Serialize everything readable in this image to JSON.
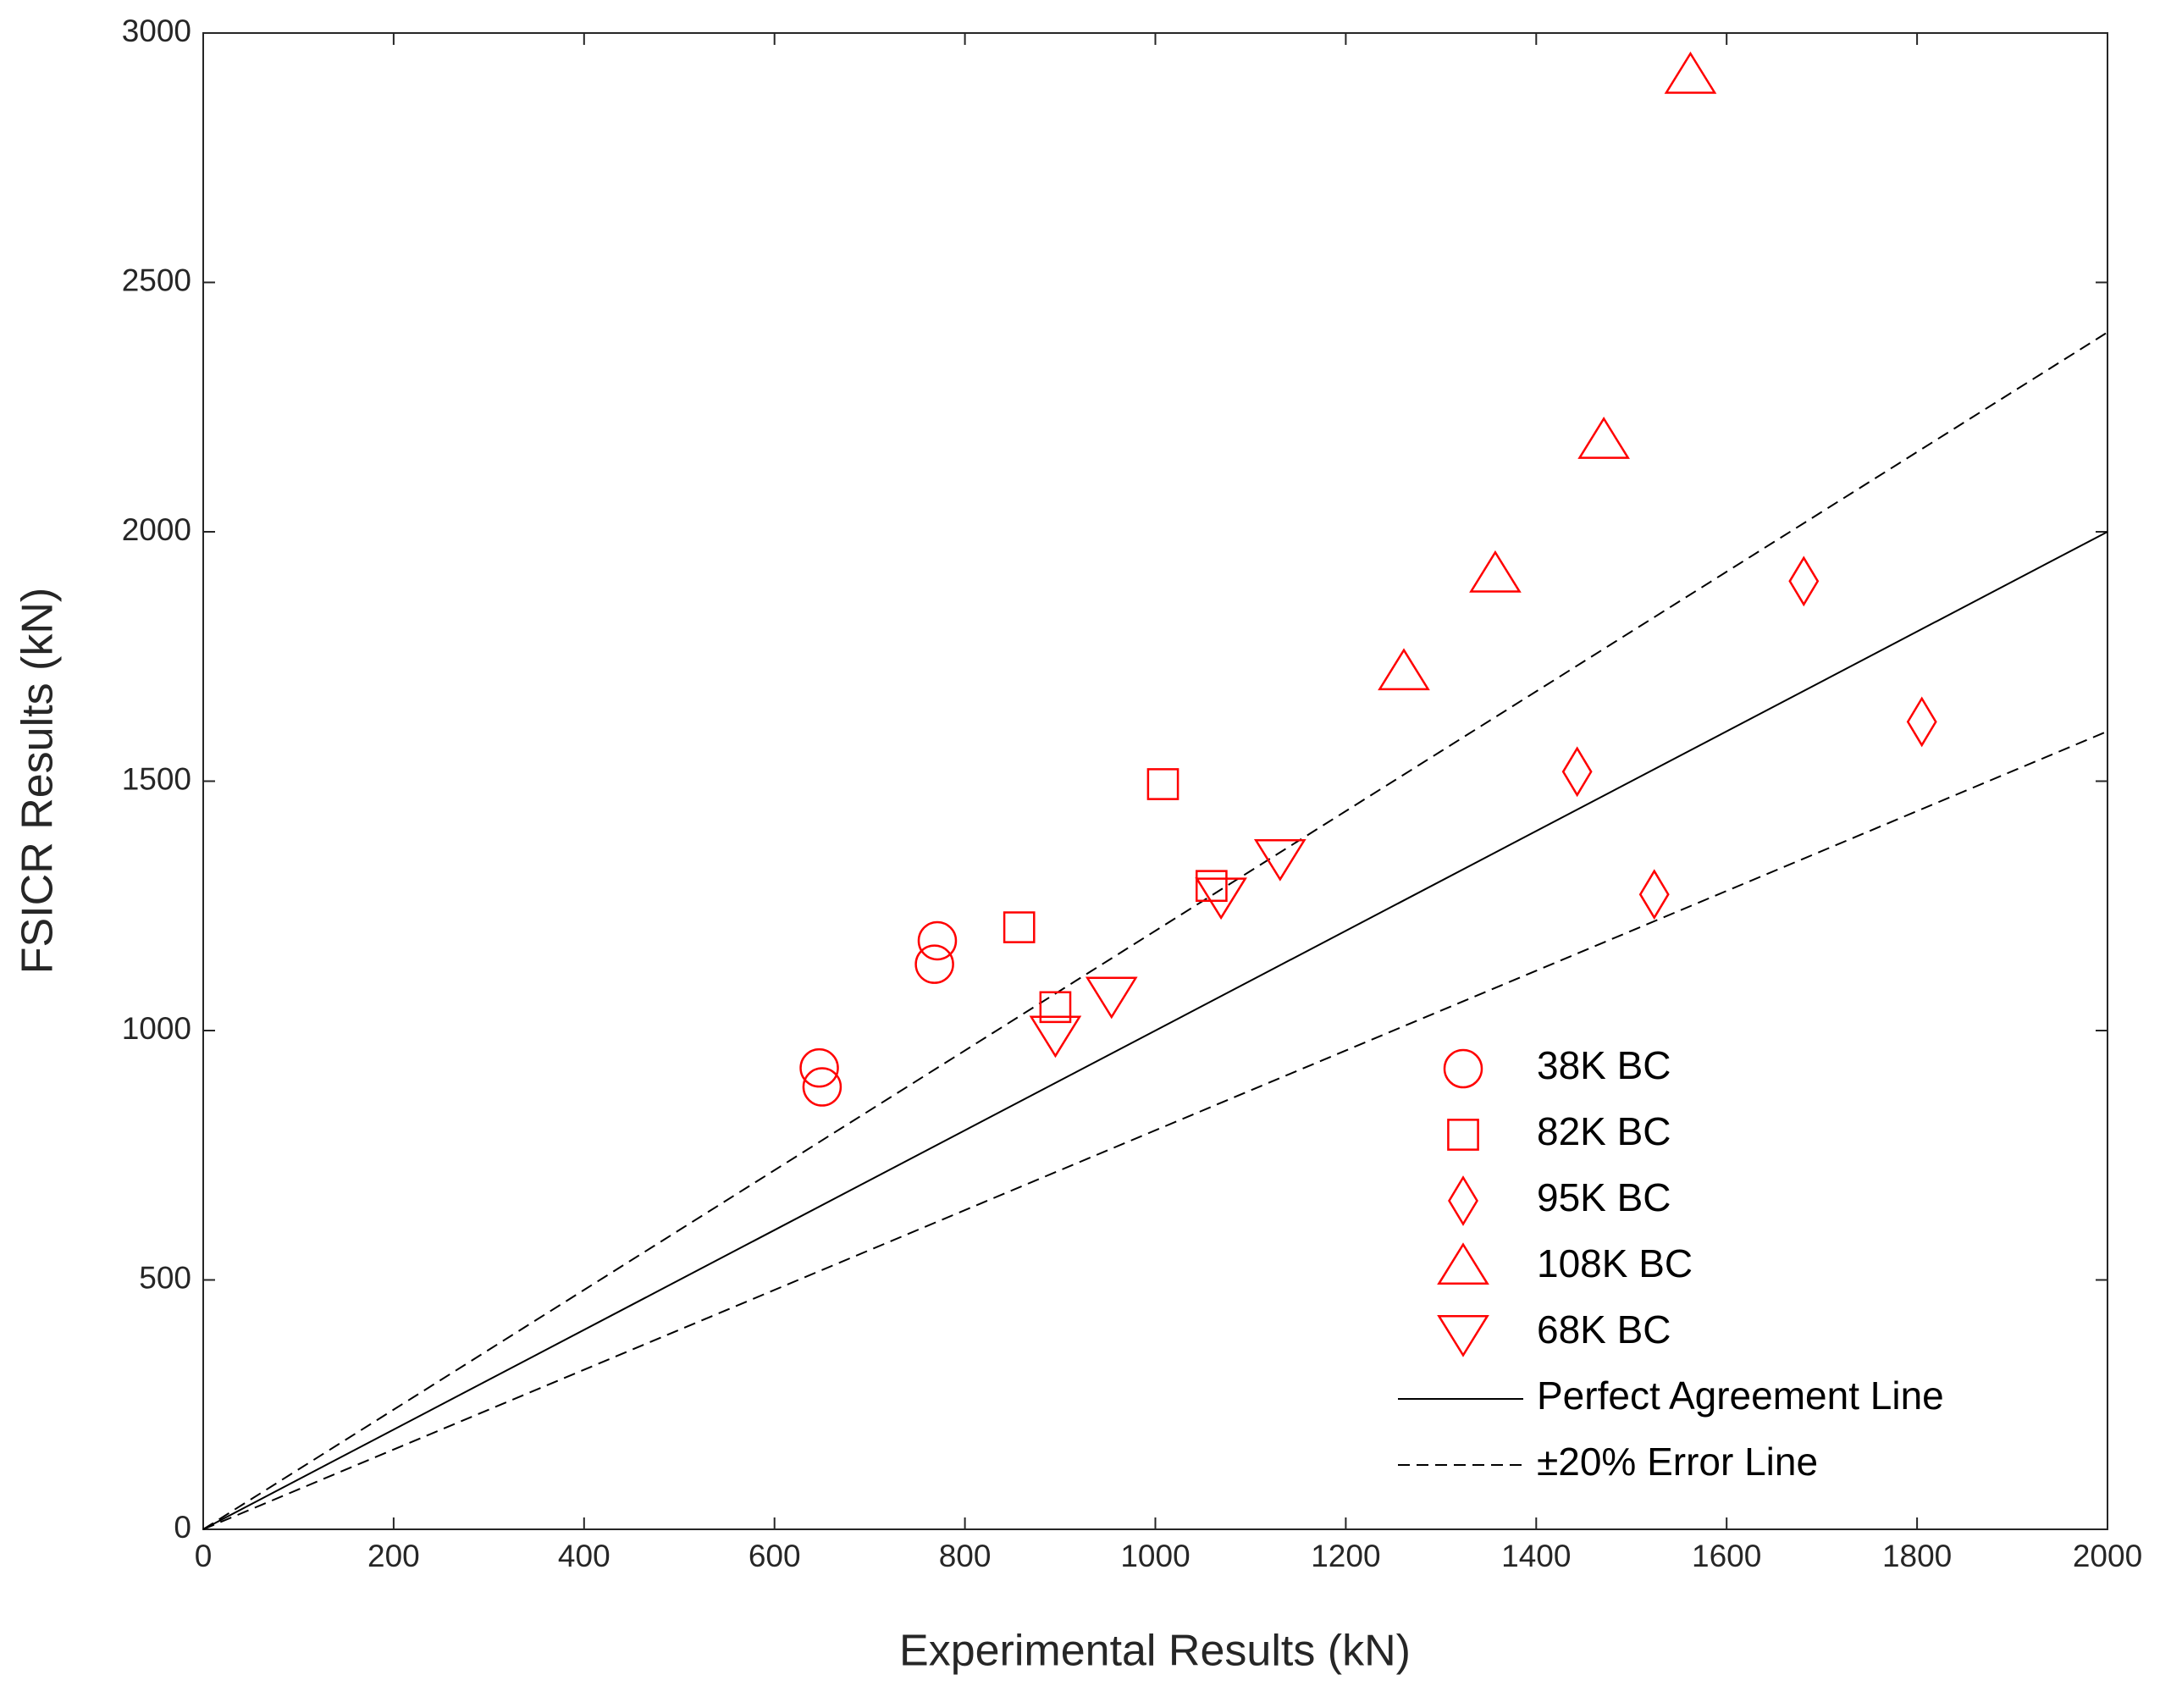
{
  "chart_data": {
    "type": "scatter",
    "xlabel": "Experimental Results (kN)",
    "ylabel": "FSICR Results (kN)",
    "xlim": [
      0,
      2000
    ],
    "ylim": [
      0,
      3000
    ],
    "xticks": [
      0,
      200,
      400,
      600,
      800,
      1000,
      1200,
      1400,
      1600,
      1800,
      2000
    ],
    "yticks": [
      0,
      500,
      1000,
      1500,
      2000,
      2500,
      3000
    ],
    "legend": "lower right",
    "series": [
      {
        "name": "38K BC",
        "marker": "circle",
        "color": "#ff0000",
        "x": [
          647,
          650,
          771,
          768
        ],
        "values": [
          925,
          887,
          1180,
          1133
        ]
      },
      {
        "name": "82K BC",
        "marker": "square",
        "color": "#ff0000",
        "x": [
          857,
          1008,
          1059,
          895
        ],
        "values": [
          1207,
          1494,
          1290,
          1047
        ]
      },
      {
        "name": "95K BC",
        "marker": "diamond",
        "color": "#ff0000",
        "x": [
          1681,
          1805,
          1443,
          1524
        ],
        "values": [
          1901,
          1619,
          1519,
          1273
        ]
      },
      {
        "name": "108K BC",
        "marker": "triangle-up",
        "color": "#ff0000",
        "x": [
          1562,
          1471,
          1357,
          1261
        ],
        "values": [
          2914,
          2182,
          1914,
          1718
        ]
      },
      {
        "name": "68K BC",
        "marker": "triangle-down",
        "color": "#ff0000",
        "x": [
          895,
          954,
          1069,
          1131
        ],
        "values": [
          994,
          1072,
          1271,
          1348
        ]
      }
    ],
    "lines": [
      {
        "name": "Perfect Agreement Line",
        "style": "solid",
        "color": "#000000",
        "x": [
          0,
          2000
        ],
        "values": [
          0,
          2000
        ]
      },
      {
        "name": "±20% Error Line",
        "style": "dashed",
        "color": "#000000",
        "x": [
          0,
          2000
        ],
        "upper_values": [
          0,
          2400
        ],
        "lower_values": [
          0,
          1600
        ]
      }
    ]
  }
}
